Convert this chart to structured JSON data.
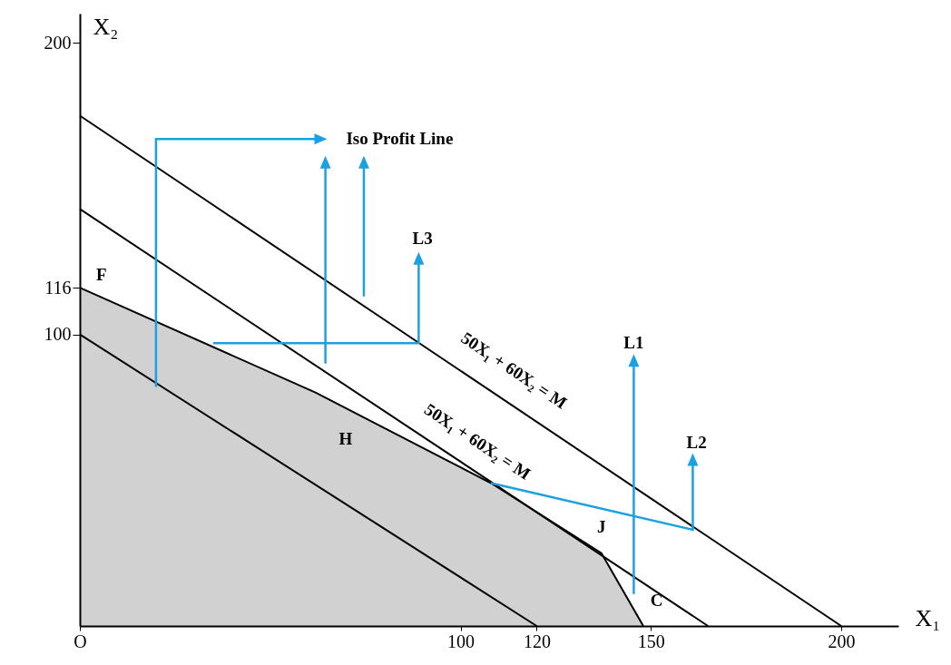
{
  "chart_data": {
    "type": "line",
    "xlabel": "X₁",
    "ylabel": "X₂",
    "xlim": [
      0,
      215
    ],
    "ylim": [
      0,
      210
    ],
    "xticks": [
      {
        "value": 0,
        "label": "O"
      },
      100,
      120,
      150,
      200
    ],
    "yticks": [
      100,
      116,
      200
    ],
    "series": [
      {
        "type": "area",
        "color": "#000000",
        "x": [
          0,
          62,
          108,
          137,
          148
        ],
        "values": [
          116,
          80,
          49,
          25,
          0
        ]
      },
      {
        "color": "#000000",
        "x": [
          0,
          120
        ],
        "values": [
          100,
          0
        ]
      },
      {
        "color": "#000000",
        "x": [
          0,
          165
        ],
        "values": [
          143,
          0
        ]
      },
      {
        "color": "#000000",
        "x": [
          0,
          200
        ],
        "values": [
          175,
          0
        ]
      }
    ],
    "annotations": [
      "Iso Profit Line",
      "L3",
      "L1",
      "L2",
      "F",
      "H",
      "J",
      "C",
      "50X₁ + 60X₂ = M",
      "50X₁ + 60X₂ = M"
    ]
  }
}
